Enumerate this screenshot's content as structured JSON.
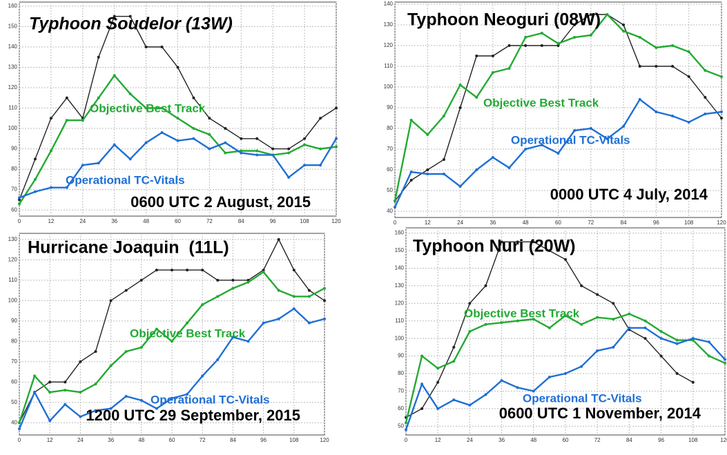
{
  "chart_data": [
    {
      "type": "line",
      "title": "Typhoon Soudelor (13W)",
      "annotation": "0600 UTC 2 August, 2015",
      "x": [
        0,
        6,
        12,
        18,
        24,
        30,
        36,
        42,
        48,
        54,
        60,
        66,
        72,
        78,
        84,
        90,
        96,
        102,
        108,
        114,
        120
      ],
      "xlim": [
        0,
        120
      ],
      "xticks": [
        0,
        12,
        24,
        36,
        48,
        60,
        72,
        84,
        96,
        108,
        120
      ],
      "ylim": [
        57,
        162
      ],
      "yticks": [
        60,
        70,
        80,
        90,
        100,
        110,
        120,
        130,
        140,
        150,
        160
      ],
      "grid": true,
      "series": [
        {
          "color": "#222222",
          "values": [
            65,
            85,
            105,
            115,
            105,
            135,
            155,
            155,
            140,
            140,
            130,
            115,
            105,
            100,
            95,
            95,
            90,
            90,
            95,
            105,
            110
          ]
        },
        {
          "name": "Objective Best Track",
          "color": "#22aa33",
          "values": [
            63,
            75,
            89,
            104,
            104,
            115,
            126,
            117,
            110,
            110,
            105,
            100,
            97,
            88,
            89,
            89,
            87,
            88,
            92,
            90,
            91
          ]
        },
        {
          "name": "Operational TC-Vitals",
          "color": "#1f6fd6",
          "values": [
            66,
            69,
            71,
            71,
            82,
            83,
            92,
            85,
            93,
            98,
            94,
            95,
            90,
            93,
            88,
            87,
            87,
            76,
            82,
            82,
            95
          ]
        }
      ]
    },
    {
      "type": "line",
      "title": "Typhoon Neoguri (08W)",
      "annotation": "0000 UTC 4 July, 2014",
      "x": [
        0,
        6,
        12,
        18,
        24,
        30,
        36,
        42,
        48,
        54,
        60,
        66,
        72,
        78,
        84,
        90,
        96,
        102,
        108,
        114,
        120
      ],
      "xlim": [
        0,
        120
      ],
      "xticks": [
        0,
        12,
        24,
        36,
        48,
        60,
        72,
        84,
        96,
        108,
        120
      ],
      "ylim": [
        37,
        141
      ],
      "yticks": [
        40,
        50,
        60,
        70,
        80,
        90,
        100,
        110,
        120,
        130,
        140
      ],
      "grid": true,
      "series": [
        {
          "color": "#222222",
          "values": [
            45,
            55,
            60,
            65,
            90,
            115,
            115,
            120,
            120,
            120,
            120,
            130,
            135,
            135,
            130,
            110,
            110,
            110,
            105,
            95,
            85
          ]
        },
        {
          "name": "Objective Best Track",
          "color": "#22aa33",
          "values": [
            45,
            84,
            77,
            86,
            101,
            95,
            107,
            109,
            124,
            126,
            121,
            124,
            125,
            135,
            127,
            124,
            119,
            120,
            117,
            108,
            105
          ]
        },
        {
          "name": "Operational TC-Vitals",
          "color": "#1f6fd6",
          "values": [
            42,
            59,
            58,
            58,
            52,
            60,
            66,
            61,
            70,
            72,
            68,
            79,
            80,
            75,
            81,
            94,
            88,
            86,
            83,
            87,
            88
          ]
        }
      ]
    },
    {
      "type": "line",
      "title": "Hurricane Joaquin  (11L)",
      "annotation": "1200 UTC 29 September, 2015",
      "x": [
        0,
        6,
        12,
        18,
        24,
        30,
        36,
        42,
        48,
        54,
        60,
        66,
        72,
        78,
        84,
        90,
        96,
        102,
        108,
        114,
        120
      ],
      "xlim": [
        0,
        120
      ],
      "xticks": [
        0,
        12,
        24,
        36,
        48,
        60,
        72,
        84,
        96,
        108,
        120
      ],
      "ylim": [
        34,
        133
      ],
      "yticks": [
        40,
        50,
        60,
        70,
        80,
        90,
        100,
        110,
        120,
        130
      ],
      "grid": true,
      "series": [
        {
          "color": "#222222",
          "values": [
            40,
            55,
            60,
            60,
            70,
            75,
            100,
            105,
            110,
            115,
            115,
            115,
            115,
            110,
            110,
            110,
            115,
            130,
            115,
            105,
            100
          ]
        },
        {
          "name": "Objective Best Track",
          "color": "#22aa33",
          "values": [
            40,
            63,
            55,
            56,
            55,
            59,
            68,
            75,
            77,
            86,
            80,
            89,
            98,
            102,
            106,
            109,
            114,
            105,
            102,
            102,
            106
          ]
        },
        {
          "name": "Operational TC-Vitals",
          "color": "#1f6fd6",
          "values": [
            37,
            55,
            41,
            49,
            43,
            46,
            47,
            53,
            51,
            47,
            52,
            54,
            63,
            71,
            82,
            80,
            89,
            91,
            96,
            89,
            91
          ]
        }
      ]
    },
    {
      "type": "line",
      "title": "Typhoon Nuri (20W)",
      "annotation": "0600 UTC 1 November, 2014",
      "x": [
        0,
        6,
        12,
        18,
        24,
        30,
        36,
        42,
        48,
        54,
        60,
        66,
        72,
        78,
        84,
        90,
        96,
        102,
        108,
        114,
        120
      ],
      "xlim": [
        0,
        120
      ],
      "xticks": [
        0,
        12,
        24,
        36,
        48,
        60,
        72,
        84,
        96,
        108,
        120
      ],
      "ylim": [
        45,
        163
      ],
      "yticks": [
        50,
        60,
        70,
        80,
        90,
        100,
        110,
        120,
        130,
        140,
        150,
        160
      ],
      "grid": true,
      "series": [
        {
          "color": "#222222",
          "values": [
            55,
            60,
            75,
            95,
            120,
            130,
            155,
            155,
            155,
            150,
            145,
            130,
            125,
            120,
            105,
            100,
            90,
            80,
            75,
            null,
            null
          ]
        },
        {
          "name": "Objective Best Track",
          "color": "#22aa33",
          "values": [
            52,
            90,
            83,
            87,
            104,
            108,
            109,
            110,
            111,
            106,
            113,
            108,
            112,
            111,
            114,
            110,
            104,
            99,
            99,
            90,
            86
          ]
        },
        {
          "name": "Operational TC-Vitals",
          "color": "#1f6fd6",
          "values": [
            48,
            74,
            60,
            65,
            62,
            68,
            76,
            72,
            70,
            78,
            80,
            84,
            93,
            95,
            106,
            106,
            100,
            97,
            100,
            98,
            88
          ]
        }
      ]
    }
  ]
}
